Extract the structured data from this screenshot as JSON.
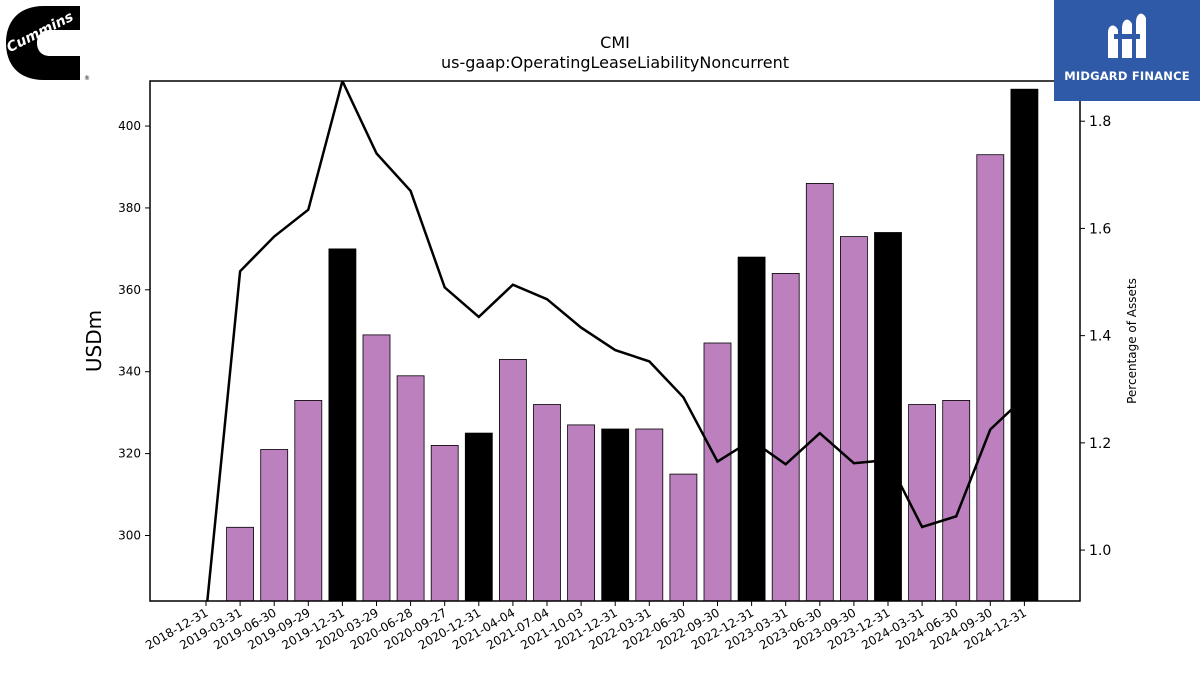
{
  "brand": {
    "left_logo_text": "Cummins",
    "right_logo_text": "MIDGARD FINANCE"
  },
  "colors": {
    "bar_quarter": "#bb80bd",
    "bar_year_end": "#000000",
    "line": "#000000",
    "logo_right_bg": "#2f5aa8"
  },
  "chart_data": {
    "type": "bar",
    "title": "CMI",
    "subtitle": "us-gaap:OperatingLeaseLiabilityNoncurrent",
    "ylabel": "USDm",
    "y2label": "Percentage of Assets",
    "ylim": [
      284,
      411
    ],
    "y2lim": [
      0.905,
      1.875
    ],
    "yticks": [
      300,
      320,
      340,
      360,
      380,
      400
    ],
    "y2ticks": [
      1.0,
      1.2,
      1.4,
      1.6,
      1.8
    ],
    "categories": [
      "2018-12-31",
      "2019-03-31",
      "2019-06-30",
      "2019-09-29",
      "2019-12-31",
      "2020-03-29",
      "2020-06-28",
      "2020-09-27",
      "2020-12-31",
      "2021-04-04",
      "2021-07-04",
      "2021-10-03",
      "2021-12-31",
      "2022-03-31",
      "2022-06-30",
      "2022-09-30",
      "2022-12-31",
      "2023-03-31",
      "2023-06-30",
      "2023-09-30",
      "2023-12-31",
      "2024-03-31",
      "2024-06-30",
      "2024-09-30",
      "2024-12-31"
    ],
    "series": [
      {
        "kind": "bar",
        "values": [
          null,
          302,
          321,
          333,
          370,
          349,
          339,
          322,
          325,
          343,
          332,
          327,
          326,
          326,
          315,
          347,
          368,
          364,
          386,
          373,
          374,
          332,
          333,
          393,
          409
        ],
        "year_end": [
          false,
          false,
          false,
          false,
          true,
          false,
          false,
          false,
          true,
          false,
          false,
          false,
          true,
          false,
          false,
          false,
          true,
          false,
          false,
          false,
          true,
          false,
          false,
          false,
          true
        ]
      },
      {
        "kind": "line",
        "axis": "right",
        "values": [
          0.88,
          1.52,
          1.585,
          1.635,
          1.875,
          1.74,
          1.67,
          1.49,
          1.435,
          1.495,
          1.468,
          1.415,
          1.373,
          1.352,
          1.285,
          1.165,
          1.205,
          1.16,
          1.218,
          1.162,
          1.168,
          1.043,
          1.063,
          1.225,
          1.285
        ]
      }
    ],
    "grid": false,
    "legend": "none"
  }
}
